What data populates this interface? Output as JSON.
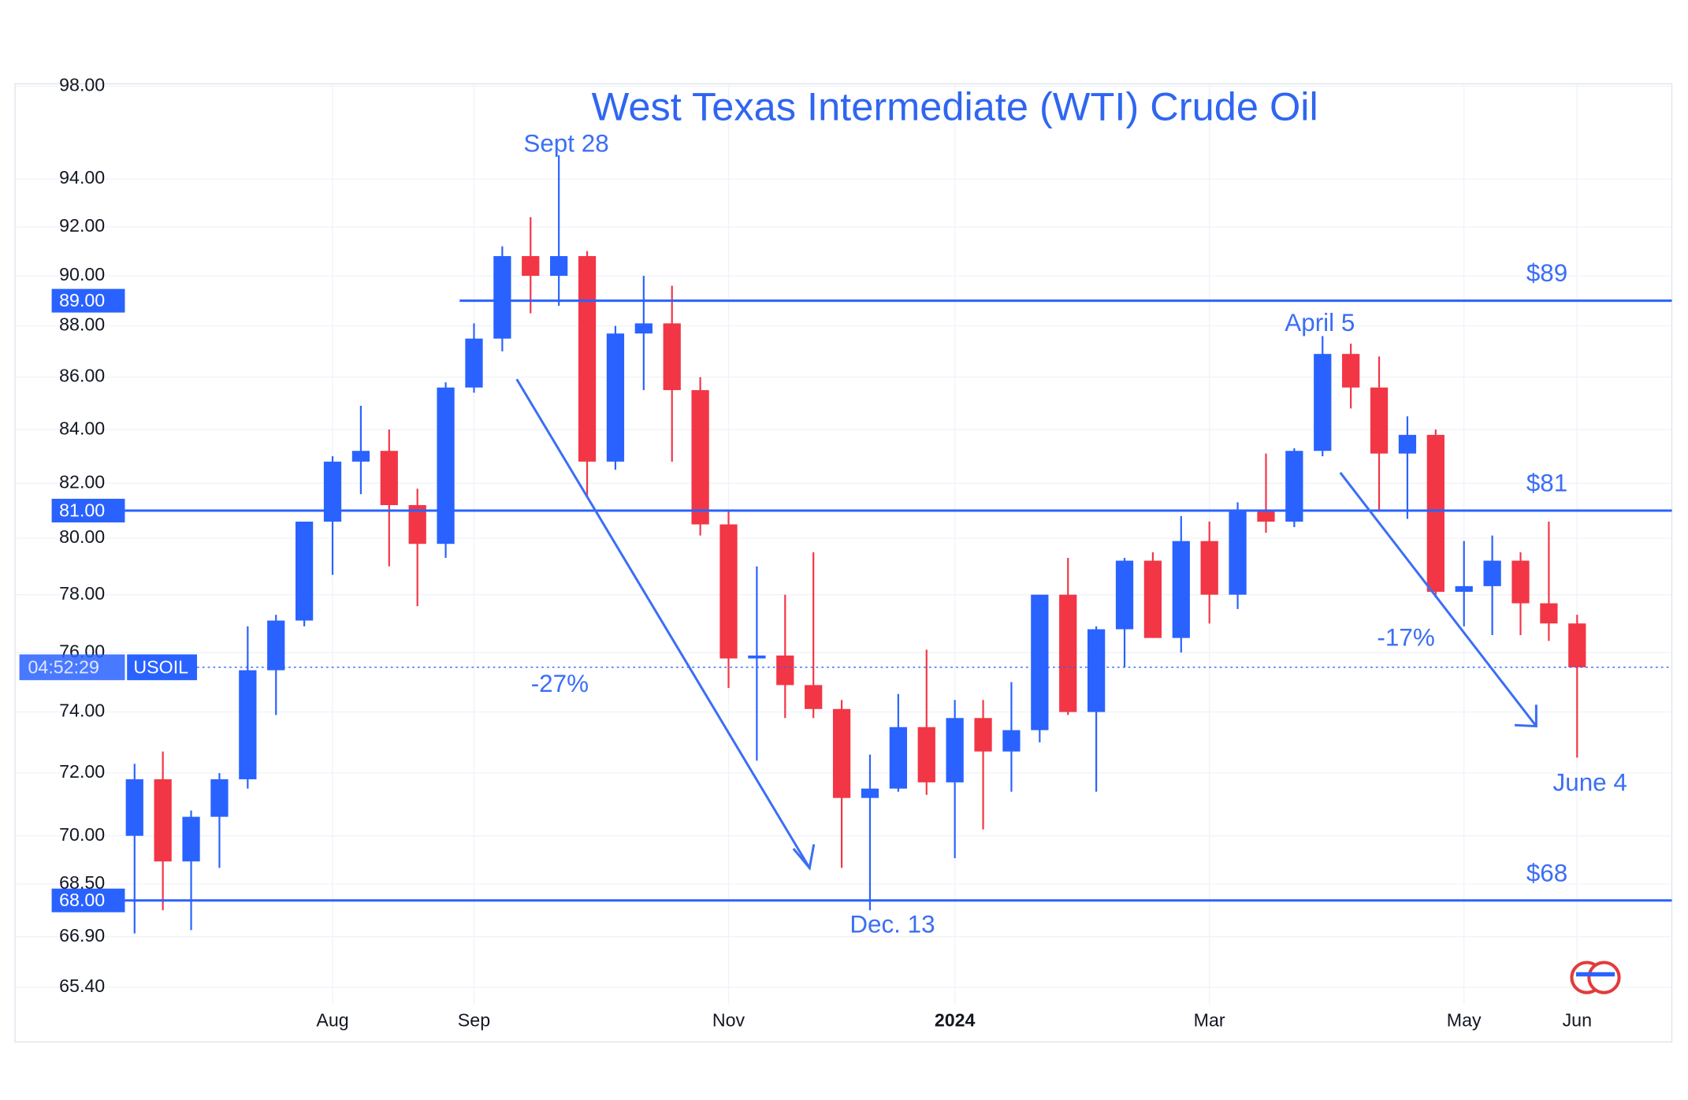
{
  "chart_data": {
    "type": "candlestick",
    "title": "West Texas Intermediate (WTI) Crude Oil",
    "categories": [
      null,
      null,
      null,
      null,
      null,
      null,
      null,
      "Aug",
      null,
      null,
      null,
      null,
      "Sep",
      null,
      null,
      null,
      null,
      null,
      null,
      null,
      null,
      "Nov",
      null,
      null,
      null,
      null,
      null,
      null,
      null,
      "2024",
      null,
      null,
      null,
      null,
      null,
      null,
      null,
      null,
      "Mar",
      null,
      null,
      null,
      null,
      null,
      null,
      null,
      null,
      "May",
      null,
      null,
      null,
      "Jun"
    ],
    "open": [
      70.0,
      71.8,
      69.2,
      70.6,
      71.8,
      75.4,
      77.1,
      80.6,
      82.8,
      83.2,
      81.2,
      79.8,
      85.6,
      87.5,
      90.8,
      90.0,
      90.8,
      82.8,
      87.7,
      88.1,
      85.5,
      80.5,
      75.8,
      75.9,
      74.9,
      74.1,
      71.2,
      71.5,
      73.5,
      71.7,
      73.8,
      72.7,
      73.4,
      78.0,
      74.0,
      76.8,
      79.2,
      76.5,
      79.9,
      78.0,
      81.0,
      80.6,
      83.2,
      86.9,
      85.6,
      83.1,
      83.8,
      78.1,
      78.3,
      79.2,
      77.7,
      77.0
    ],
    "high": [
      72.3,
      72.7,
      70.8,
      72.0,
      76.9,
      77.3,
      80.6,
      83.0,
      84.9,
      84.0,
      81.8,
      85.8,
      88.1,
      91.2,
      92.4,
      95.0,
      91.0,
      88.0,
      90.0,
      89.6,
      86.0,
      81.0,
      79.0,
      78.0,
      79.5,
      74.4,
      72.6,
      74.6,
      76.1,
      74.4,
      74.4,
      75.0,
      78.0,
      79.3,
      76.9,
      79.3,
      79.5,
      80.8,
      80.6,
      81.3,
      83.1,
      83.3,
      87.6,
      87.3,
      86.8,
      84.5,
      84.0,
      79.9,
      80.1,
      79.5,
      80.6,
      77.3
    ],
    "low": [
      67.0,
      67.7,
      67.1,
      69.0,
      71.5,
      73.9,
      76.9,
      78.7,
      81.6,
      79.0,
      77.6,
      79.3,
      85.4,
      87.0,
      88.5,
      88.8,
      81.5,
      82.5,
      85.5,
      82.8,
      80.1,
      74.8,
      72.4,
      73.8,
      73.8,
      69.0,
      67.7,
      71.4,
      71.3,
      69.3,
      70.2,
      71.4,
      73.0,
      73.9,
      71.4,
      75.5,
      76.5,
      76.0,
      77.0,
      77.5,
      80.2,
      80.4,
      83.0,
      84.8,
      81.0,
      80.7,
      77.9,
      76.9,
      76.6,
      76.6,
      76.4,
      72.5
    ],
    "close": [
      71.8,
      69.2,
      70.6,
      71.8,
      75.4,
      77.1,
      80.6,
      82.8,
      83.2,
      81.2,
      79.8,
      85.6,
      87.5,
      90.8,
      90.0,
      90.8,
      82.8,
      87.7,
      88.1,
      85.5,
      80.5,
      75.8,
      75.9,
      74.9,
      74.1,
      71.2,
      71.5,
      73.5,
      71.7,
      73.8,
      72.7,
      73.4,
      78.0,
      74.0,
      76.8,
      79.2,
      76.5,
      79.9,
      78.0,
      81.0,
      80.6,
      83.2,
      86.9,
      85.6,
      83.1,
      83.8,
      78.1,
      78.3,
      79.2,
      77.7,
      77.0,
      75.5
    ],
    "up_color": "#2962ff",
    "down_color": "#f23645",
    "log_scale": true,
    "grid": true,
    "ylim": [
      64.9,
      98.1
    ],
    "yticks": [
      {
        "value": 98,
        "label": "98.00"
      },
      {
        "value": 94,
        "label": "94.00"
      },
      {
        "value": 92,
        "label": "92.00"
      },
      {
        "value": 90,
        "label": "90.00"
      },
      {
        "value": 88,
        "label": "88.00"
      },
      {
        "value": 86,
        "label": "86.00"
      },
      {
        "value": 84,
        "label": "84.00"
      },
      {
        "value": 82,
        "label": "82.00"
      },
      {
        "value": 80,
        "label": "80.00"
      },
      {
        "value": 78,
        "label": "78.00"
      },
      {
        "value": 76,
        "label": "76.00"
      },
      {
        "value": 74,
        "label": "74.00"
      },
      {
        "value": 72,
        "label": "72.00"
      },
      {
        "value": 70,
        "label": "70.00"
      },
      {
        "value": 68.5,
        "label": "68.50"
      },
      {
        "value": 66.9,
        "label": "66.90"
      },
      {
        "value": 65.4,
        "label": "65.40"
      }
    ],
    "levels": [
      {
        "value": 89,
        "label": "$89",
        "axis_label": "89.00"
      },
      {
        "value": 81,
        "label": "$81",
        "axis_label": "81.00"
      },
      {
        "value": 68,
        "label": "$68",
        "axis_label": "68.00"
      }
    ],
    "last_price": {
      "value": 75.5,
      "countdown": "04:52:29",
      "symbol": "USOIL"
    },
    "annotations": [
      "Sept 28",
      "Dec. 13",
      "April 5",
      "June 4",
      "-27%",
      "-17%"
    ]
  }
}
